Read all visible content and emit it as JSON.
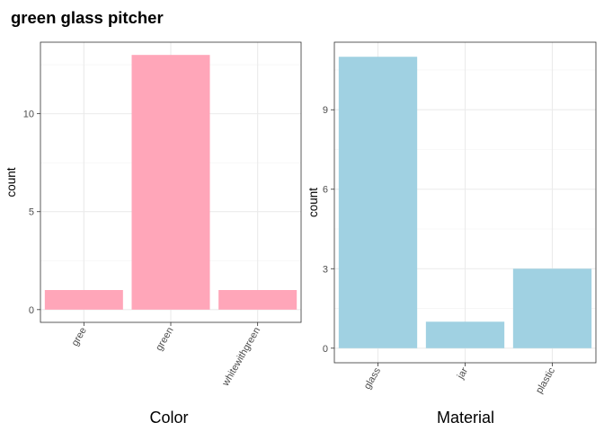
{
  "title": "green glass pitcher",
  "chart_data": [
    {
      "type": "bar",
      "categories": [
        "gree",
        "green",
        "whitewithgreen"
      ],
      "values": [
        1,
        13,
        1
      ],
      "xlabel": "Color",
      "ylabel": "count",
      "yticks": [
        0,
        5,
        10
      ],
      "ylim": [
        -0.65,
        13.65
      ],
      "bar_color": "#FFA6B9",
      "grid": true
    },
    {
      "type": "bar",
      "categories": [
        "glass",
        "jar",
        "plastic"
      ],
      "values": [
        11,
        1,
        3
      ],
      "xlabel": "Material",
      "ylabel": "count",
      "yticks": [
        0,
        3,
        6,
        9
      ],
      "ylim": [
        -0.55,
        11.55
      ],
      "bar_color": "#A0D1E2",
      "grid": true
    }
  ]
}
